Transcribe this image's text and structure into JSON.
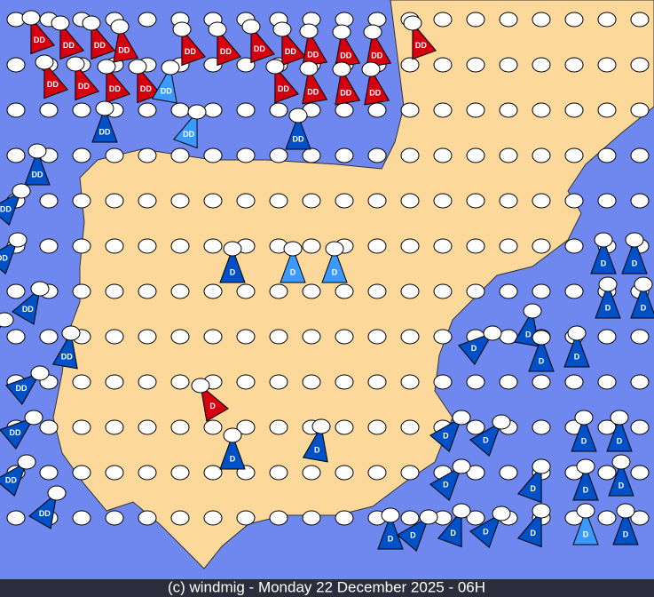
{
  "footer": "(c) windmig - Monday 22 December 2025 - 06H",
  "markers": [
    {
      "label": "DD"
    },
    {
      "label": "DD"
    },
    {
      "label": "DD"
    },
    {
      "label": "DD"
    },
    {
      "label": "DD"
    },
    {
      "label": "DD"
    },
    {
      "label": "DD"
    },
    {
      "label": "DD"
    },
    {
      "label": "DD"
    },
    {
      "label": "DD"
    },
    {
      "label": "DD"
    },
    {
      "label": "DD"
    },
    {
      "label": "DD"
    },
    {
      "label": "DD"
    },
    {
      "label": "DD"
    },
    {
      "label": "DD"
    },
    {
      "label": "DD"
    },
    {
      "label": "DD"
    },
    {
      "label": "DD"
    },
    {
      "label": "DD"
    },
    {
      "label": "DD"
    },
    {
      "label": "DD"
    },
    {
      "label": "DD"
    },
    {
      "label": "DD"
    },
    {
      "label": "DD"
    },
    {
      "label": "DD"
    },
    {
      "label": "DD"
    },
    {
      "label": "DD"
    },
    {
      "label": "DD"
    },
    {
      "label": "DD"
    },
    {
      "label": "DD"
    },
    {
      "label": "DD"
    },
    {
      "label": "DD"
    },
    {
      "label": "DD"
    },
    {
      "label": "D"
    },
    {
      "label": "D"
    },
    {
      "label": "D"
    },
    {
      "label": "D"
    },
    {
      "label": "D"
    },
    {
      "label": "D"
    },
    {
      "label": "D"
    },
    {
      "label": "D"
    },
    {
      "label": "D"
    },
    {
      "label": "D"
    },
    {
      "label": "D"
    },
    {
      "label": "D"
    },
    {
      "label": "D"
    },
    {
      "label": "D"
    },
    {
      "label": "D"
    },
    {
      "label": "D"
    },
    {
      "label": "D"
    },
    {
      "label": "D"
    },
    {
      "label": "D"
    },
    {
      "label": "D"
    },
    {
      "label": "D"
    },
    {
      "label": "D"
    },
    {
      "label": "D"
    },
    {
      "label": "D"
    },
    {
      "label": "D"
    },
    {
      "label": "D"
    },
    {
      "label": "D"
    },
    {
      "label": "D"
    },
    {
      "label": "D"
    }
  ]
}
